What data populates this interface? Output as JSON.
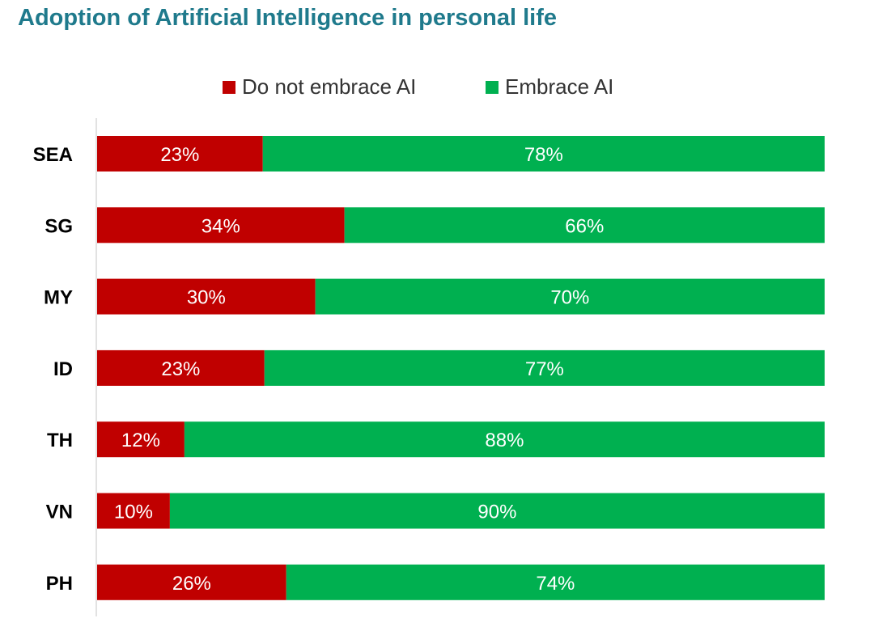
{
  "title": "Adoption of Artificial Intelligence in personal life",
  "colors": {
    "series_0": "#c00000",
    "series_1": "#00b050",
    "axis": "#d9d9d9",
    "title": "#1f7a8c"
  },
  "chart_data": {
    "type": "bar",
    "orientation": "horizontal",
    "stacked": true,
    "title": "Adoption of Artificial Intelligence in personal life",
    "categories": [
      "SEA",
      "SG",
      "MY",
      "ID",
      "TH",
      "VN",
      "PH"
    ],
    "series": [
      {
        "name": "Do not embrace AI",
        "values": [
          23,
          34,
          30,
          23,
          12,
          10,
          26
        ],
        "labels": [
          "23%",
          "34%",
          "30%",
          "23%",
          "12%",
          "10%",
          "26%"
        ]
      },
      {
        "name": "Embrace AI",
        "values": [
          78,
          66,
          70,
          77,
          88,
          90,
          74
        ],
        "labels": [
          "78%",
          "66%",
          "70%",
          "77%",
          "88%",
          "90%",
          "74%"
        ]
      }
    ],
    "legend_position": "top",
    "grid": false,
    "xlabel": "",
    "ylabel": ""
  }
}
